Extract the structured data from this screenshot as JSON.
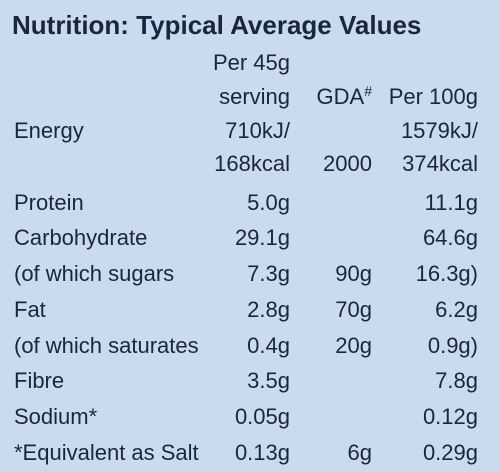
{
  "title": "Nutrition: Typical Average Values",
  "header": {
    "per_serving": [
      "Per 45g",
      "serving"
    ],
    "gda": {
      "text": "GDA",
      "sup": "#"
    },
    "per_100g": "Per 100g"
  },
  "rows": [
    [
      "Energy",
      "710kJ/",
      null,
      "1579kJ/"
    ],
    [
      null,
      "168kcal",
      "2000",
      "374kcal"
    ],
    [
      "Protein",
      "5.0g",
      null,
      "11.1g"
    ],
    [
      "Carbohydrate",
      "29.1g",
      null,
      "64.6g"
    ],
    [
      "(of which sugars",
      "7.3g",
      "90g",
      "16.3g)"
    ],
    [
      "Fat",
      "2.8g",
      "70g",
      "6.2g"
    ],
    [
      "(of which saturates",
      "0.4g",
      "20g",
      "0.9g)"
    ],
    [
      "Fibre",
      "3.5g",
      null,
      "7.8g"
    ],
    [
      "Sodium*",
      "0.05g",
      null,
      "0.12g"
    ],
    [
      "*Equivalent as Salt",
      "0.13g",
      "6g",
      "0.29g"
    ]
  ]
}
